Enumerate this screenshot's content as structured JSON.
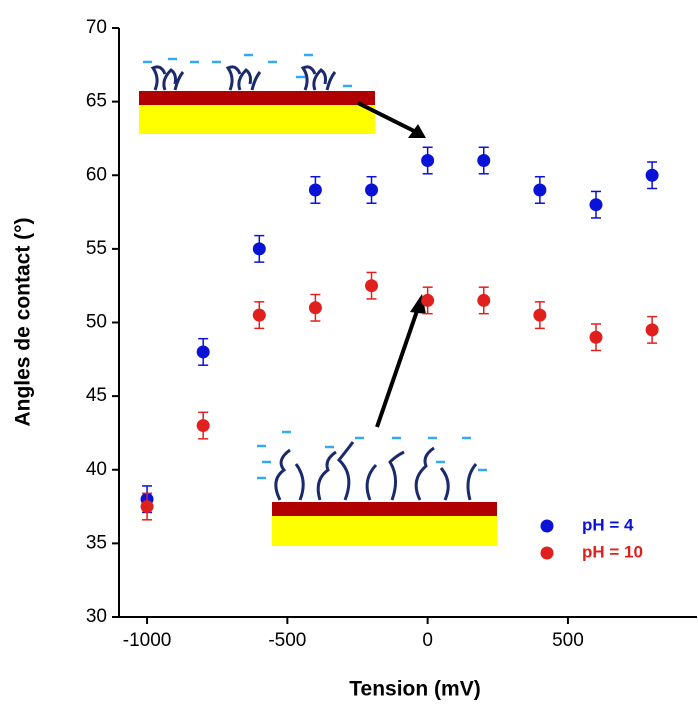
{
  "chart_data": {
    "type": "scatter",
    "x_label": "Tension (mV)",
    "y_label": "Angles de contact (°)",
    "xlim": [
      -1100,
      960
    ],
    "ylim": [
      30,
      70
    ],
    "xticks": [
      -1000,
      -500,
      0,
      500
    ],
    "yticks": [
      30,
      35,
      40,
      45,
      50,
      55,
      60,
      65,
      70
    ],
    "legend": "lower right",
    "series": [
      {
        "name": "pH = 4",
        "color": "#0a12d8",
        "x": [
          -1000,
          -800,
          -600,
          -400,
          -200,
          0,
          200,
          400,
          600,
          800
        ],
        "values": [
          38,
          48,
          55,
          59,
          59,
          61,
          61,
          59,
          58,
          60
        ],
        "errors": [
          0.9,
          0.9,
          0.9,
          0.9,
          0.9,
          0.9,
          0.9,
          0.9,
          0.9,
          0.9
        ]
      },
      {
        "name": "pH = 10",
        "color": "#e0201c",
        "x": [
          -1000,
          -800,
          -600,
          -400,
          -200,
          0,
          200,
          400,
          600,
          800
        ],
        "values": [
          37.5,
          43,
          50.5,
          51,
          52.5,
          51.5,
          51.5,
          50.5,
          49,
          49.5
        ],
        "errors": [
          0.9,
          0.9,
          0.9,
          0.9,
          0.9,
          0.9,
          0.9,
          0.9,
          0.9,
          0.9
        ]
      }
    ]
  }
}
